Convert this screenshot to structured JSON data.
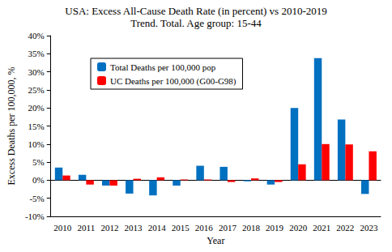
{
  "chart_data": {
    "type": "bar",
    "title": "USA: Excess All-Cause Death Rate (in percent) vs 2010-2019",
    "subtitle": "Trend. Total. Age group: 15-44",
    "x_label": "Year",
    "y_label": "Excess Deaths per 100,000, %",
    "categories": [
      "2010",
      "2011",
      "2012",
      "2013",
      "2014",
      "2015",
      "2016",
      "2017",
      "2018",
      "2019",
      "2020",
      "2021",
      "2022",
      "2023"
    ],
    "series": [
      {
        "name": "Total Deaths per 100,000 pop",
        "color": "#0070c0",
        "values": [
          3.5,
          1.5,
          -1.5,
          -3.7,
          -4.2,
          -1.5,
          4.0,
          3.7,
          -0.3,
          -1.2,
          20.0,
          33.8,
          16.8,
          -3.8
        ]
      },
      {
        "name": "UC Deaths per 100,000 (G00-G98)",
        "color": "#ff0000",
        "values": [
          1.3,
          -1.2,
          -1.5,
          0.4,
          0.8,
          0.2,
          0.2,
          -0.5,
          0.5,
          -0.5,
          4.4,
          10.0,
          9.9,
          8.0
        ]
      }
    ],
    "ylim": [
      -10,
      40
    ],
    "yticks": [
      {
        "value": -10,
        "label": "-10%"
      },
      {
        "value": -5,
        "label": "-5%"
      },
      {
        "value": 0,
        "label": "0%"
      },
      {
        "value": 5,
        "label": "5%"
      },
      {
        "value": 10,
        "label": "10%"
      },
      {
        "value": 15,
        "label": "15%"
      },
      {
        "value": 20,
        "label": "20%"
      },
      {
        "value": 25,
        "label": "25%"
      },
      {
        "value": 30,
        "label": "30%"
      },
      {
        "value": 35,
        "label": "35%"
      },
      {
        "value": 40,
        "label": "40%"
      }
    ],
    "grid": false,
    "legend": "top-left"
  }
}
